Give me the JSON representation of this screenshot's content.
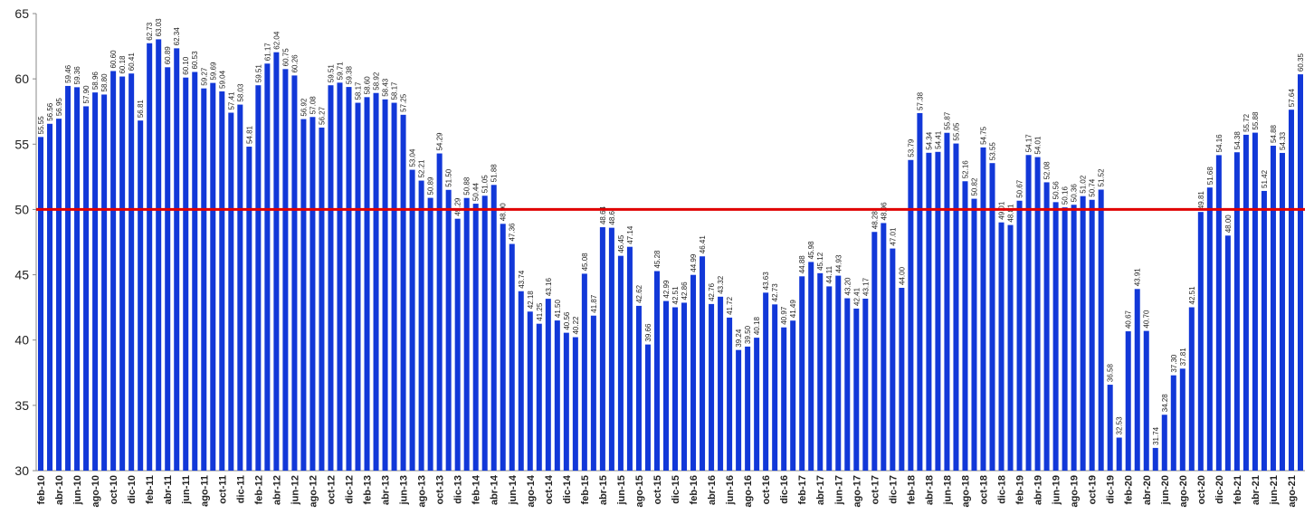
{
  "chart_data": {
    "type": "bar",
    "categories": [
      "feb-10",
      null,
      "abr-10",
      null,
      "jun-10",
      null,
      "ago-10",
      null,
      "oct-10",
      null,
      "dic-10",
      null,
      "feb-11",
      null,
      "abr-11",
      null,
      "jun-11",
      null,
      "ago-11",
      null,
      "oct-11",
      null,
      "dic-11",
      null,
      "feb-12",
      null,
      "abr-12",
      null,
      "jun-12",
      null,
      "ago-12",
      null,
      "oct-12",
      null,
      "dic-12",
      null,
      "feb-13",
      null,
      "abr-13",
      null,
      "jun-13",
      null,
      "ago-13",
      null,
      "oct-13",
      null,
      "dic-13",
      null,
      "feb-14",
      null,
      "abr-14",
      null,
      "jun-14",
      null,
      "ago-14",
      null,
      "oct-14",
      null,
      "dic-14",
      null,
      "feb-15",
      null,
      "abr-15",
      null,
      "jun-15",
      null,
      "ago-15",
      null,
      "oct-15",
      null,
      "dic-15",
      null,
      "feb-16",
      null,
      "abr-16",
      null,
      "jun-16",
      null,
      "ago-16",
      null,
      "oct-16",
      null,
      "dic-16",
      null,
      "feb-17",
      null,
      "abr-17",
      null,
      "jun-17",
      null,
      "ago-17",
      null,
      "oct-17",
      null,
      "dic-17",
      null,
      "feb-18",
      null,
      "abr-18",
      null,
      "jun-18",
      null,
      "ago-18",
      null,
      "oct-18",
      null,
      "dic-18",
      null,
      "feb-19",
      null,
      "abr-19",
      null,
      "jun-19",
      null,
      "ago-19",
      null,
      "oct-19",
      null,
      "dic-19",
      null,
      "feb-20",
      null,
      "abr-20",
      null,
      "jun-20",
      null,
      "ago-20",
      null,
      "oct-20",
      null,
      "dic-20",
      null,
      "feb-21",
      null,
      "abr-21",
      null,
      "jun-21",
      null,
      "ago-21",
      null
    ],
    "values": [
      55.55,
      56.56,
      56.95,
      59.46,
      59.36,
      57.9,
      58.96,
      58.8,
      60.6,
      60.18,
      60.41,
      56.81,
      62.73,
      63.03,
      60.89,
      62.34,
      60.1,
      60.53,
      59.27,
      59.69,
      59.04,
      57.41,
      58.03,
      54.81,
      59.51,
      61.17,
      62.04,
      60.75,
      60.26,
      56.92,
      57.08,
      56.27,
      59.51,
      59.71,
      59.38,
      58.17,
      58.6,
      58.92,
      58.43,
      58.17,
      57.25,
      53.04,
      52.21,
      50.89,
      54.29,
      51.5,
      49.29,
      50.88,
      50.44,
      51.05,
      51.88,
      48.9,
      47.36,
      43.74,
      42.18,
      41.25,
      43.16,
      41.5,
      40.56,
      40.22,
      45.08,
      41.87,
      48.64,
      48.6,
      46.45,
      47.14,
      42.62,
      39.66,
      45.28,
      42.99,
      42.51,
      42.86,
      44.99,
      46.41,
      42.76,
      43.32,
      41.72,
      39.24,
      39.5,
      40.18,
      43.63,
      42.73,
      40.97,
      41.49,
      44.88,
      45.98,
      45.12,
      44.11,
      44.93,
      43.2,
      42.41,
      43.17,
      48.28,
      48.96,
      47.01,
      44.0,
      53.79,
      57.38,
      54.34,
      54.41,
      55.87,
      55.05,
      52.16,
      50.82,
      54.75,
      53.55,
      49.01,
      48.81,
      50.67,
      54.17,
      54.01,
      52.08,
      50.56,
      50.16,
      50.36,
      51.02,
      50.74,
      51.52,
      36.58,
      32.53,
      40.67,
      43.91,
      40.7,
      31.74,
      34.28,
      37.3,
      37.81,
      42.51,
      49.81,
      51.68,
      54.16,
      48.0,
      54.38,
      55.72,
      55.88,
      51.42,
      54.88,
      54.33,
      57.64,
      60.35
    ],
    "value_labels": [
      "55.55",
      "56.56",
      "56.95",
      "59.46",
      "59.36",
      "57.90",
      "58.96",
      "58.80",
      "60.60",
      "60.18",
      "60.41",
      "56.81",
      "62.73",
      "63.03",
      "60.89",
      "62.34",
      "60.10",
      "60.53",
      "59.27",
      "59.69",
      "59.04",
      "57.41",
      "58.03",
      "54.81",
      "59.51",
      "61.17",
      "62.04",
      "60.75",
      "60.26",
      "56.92",
      "57.08",
      "56.27",
      "59.51",
      "59.71",
      "59.38",
      "58.17",
      "58.60",
      "58.92",
      "58.43",
      "58.17",
      "57.25",
      "53.04",
      "52.21",
      "50.89",
      "54.29",
      "51.50",
      "49.29",
      "50.88",
      "50.44",
      "51.05",
      "51.88",
      "48.90",
      "47.36",
      "43.74",
      "42.18",
      "41.25",
      "43.16",
      "41.50",
      "40.56",
      "40.22",
      "45.08",
      "41.87",
      "48.64",
      "48.6",
      "46.45",
      "47.14",
      "42.62",
      "39.66",
      "45.28",
      "42.99",
      "42.51",
      "42.86",
      "44.99",
      "46.41",
      "42.76",
      "43.32",
      "41.72",
      "39.24",
      "39.50",
      "40.18",
      "43.63",
      "42.73",
      "40.97",
      "41.49",
      "44.88",
      "45.98",
      "45.12",
      "44.11",
      "44.93",
      "43.20",
      "42.41",
      "43.17",
      "48.28",
      "48.96",
      "47.01",
      "44.00",
      "53.79",
      "57.38",
      "54.34",
      "54.41",
      "55.87",
      "55.05",
      "52.16",
      "50.82",
      "54.75",
      "53.55",
      "49.01",
      "48.81",
      "50.67",
      "54.17",
      "54.01",
      "52.08",
      "50.56",
      "50.16",
      "50.36",
      "51.02",
      "50.74",
      "51.52",
      "36.58",
      "32.53",
      "40.67",
      "43.91",
      "40.70",
      "31.74",
      "34.28",
      "37.30",
      "37.81",
      "42.51",
      "49.81",
      "51.68",
      "54.16",
      "48.00",
      "54.38",
      "55.72",
      "55.88",
      "51.42",
      "54.88",
      "54.33",
      "57.64",
      "60.35"
    ],
    "color": "#1238d8",
    "ylim": [
      30,
      65
    ],
    "yticks": [
      30,
      35,
      40,
      45,
      50,
      55,
      60,
      65
    ],
    "reference_line": {
      "value": 50,
      "color": "#e00000"
    }
  }
}
